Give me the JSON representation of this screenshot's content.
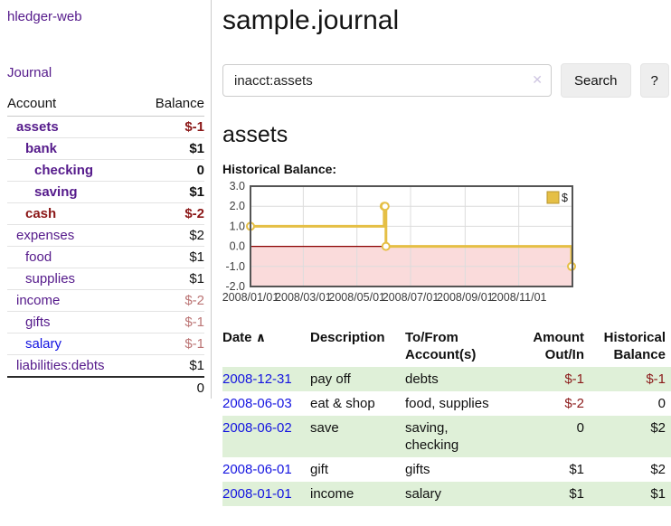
{
  "app": {
    "title": "hledger-web"
  },
  "colors": {
    "link_purple": "#551a8b",
    "link_blue": "#1414e0",
    "neg_strong": "#8b1717",
    "neg_light": "#bb7474",
    "row_green": "#dff0d8",
    "chart_gold": "#e5bf45"
  },
  "sidebar": {
    "journal_link": "Journal",
    "accounts": {
      "header_account": "Account",
      "header_balance": "Balance",
      "rows": [
        {
          "name": "assets",
          "balance": "$-1",
          "depth": 0,
          "bold": true,
          "name_color": "purple",
          "balance_color": "negstrong"
        },
        {
          "name": "bank",
          "balance": "$1",
          "depth": 1,
          "bold": true,
          "name_color": "purple",
          "balance_color": "plain"
        },
        {
          "name": "checking",
          "balance": "0",
          "depth": 2,
          "bold": true,
          "name_color": "purple",
          "balance_color": "plain"
        },
        {
          "name": "saving",
          "balance": "$1",
          "depth": 2,
          "bold": true,
          "name_color": "purple",
          "balance_color": "plain"
        },
        {
          "name": "cash",
          "balance": "$-2",
          "depth": 1,
          "bold": true,
          "name_color": "darkred",
          "balance_color": "negstrong"
        },
        {
          "name": "expenses",
          "balance": "$2",
          "depth": 0,
          "bold": false,
          "name_color": "purple",
          "balance_color": "plain"
        },
        {
          "name": "food",
          "balance": "$1",
          "depth": 1,
          "bold": false,
          "name_color": "purple",
          "balance_color": "plain"
        },
        {
          "name": "supplies",
          "balance": "$1",
          "depth": 1,
          "bold": false,
          "name_color": "purple",
          "balance_color": "plain"
        },
        {
          "name": "income",
          "balance": "$-2",
          "depth": 0,
          "bold": false,
          "name_color": "purple",
          "balance_color": "neglight"
        },
        {
          "name": "gifts",
          "balance": "$-1",
          "depth": 1,
          "bold": false,
          "name_color": "purple",
          "balance_color": "neglight"
        },
        {
          "name": "salary",
          "balance": "$-1",
          "depth": 1,
          "bold": false,
          "name_color": "blue",
          "balance_color": "neglight"
        },
        {
          "name": "liabilities:debts",
          "balance": "$1",
          "depth": 0,
          "bold": false,
          "name_color": "purple",
          "balance_color": "plain"
        }
      ],
      "total": "0"
    }
  },
  "main": {
    "title": "sample.journal",
    "search": {
      "value": "inacct:assets",
      "clear_icon": "✕",
      "button_label": "Search",
      "help_label": "?"
    },
    "account_heading": "assets",
    "chart_label": "Historical Balance:",
    "register": {
      "headers": {
        "date": "Date",
        "sort_icon": "∧",
        "description": "Description",
        "accounts": "To/From Account(s)",
        "amount": "Amount Out/In",
        "balance": "Historical Balance"
      },
      "rows": [
        {
          "date": "2008-12-31",
          "description": "pay off",
          "accounts": "debts",
          "amount": "$-1",
          "balance": "$-1"
        },
        {
          "date": "2008-06-03",
          "description": "eat & shop",
          "accounts": "food, supplies",
          "amount": "$-2",
          "balance": "0"
        },
        {
          "date": "2008-06-02",
          "description": "save",
          "accounts": "saving, checking",
          "amount": "0",
          "balance": "$2"
        },
        {
          "date": "2008-06-01",
          "description": "gift",
          "accounts": "gifts",
          "amount": "$1",
          "balance": "$2"
        },
        {
          "date": "2008-01-01",
          "description": "income",
          "accounts": "salary",
          "amount": "$1",
          "balance": "$1"
        }
      ]
    }
  },
  "chart_data": {
    "type": "line",
    "step": true,
    "title": "Historical Balance",
    "legend": {
      "label": "$",
      "position": "top-right"
    },
    "x_domain": [
      "2008-01-01",
      "2009-01-01"
    ],
    "ylim": [
      -2,
      3
    ],
    "y_ticks": [
      "3.0",
      "2.0",
      "1.0",
      "0.0",
      "-1.0",
      "-2.0"
    ],
    "x_ticks": [
      "2008/01/01",
      "2008/03/01",
      "2008/05/01",
      "2008/07/01",
      "2008/09/01",
      "2008/11/01"
    ],
    "series": [
      {
        "name": "$",
        "color": "#e5bf45",
        "points": [
          {
            "date": "2008-01-01",
            "value": 1
          },
          {
            "date": "2008-06-01",
            "value": 2
          },
          {
            "date": "2008-06-02",
            "value": 2
          },
          {
            "date": "2008-06-03",
            "value": 0
          },
          {
            "date": "2008-12-31",
            "value": -1
          }
        ]
      }
    ],
    "grid": true,
    "negative_region_color": "#fadbdb",
    "zero_line_color": "#8b0000",
    "border_color": "#545454"
  }
}
